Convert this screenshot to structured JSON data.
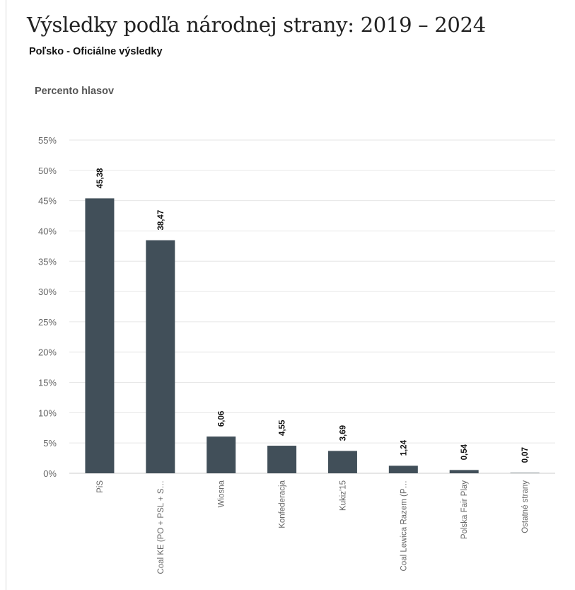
{
  "title": "Výsledky podľa národnej strany: 2019 – 2024",
  "subtitle": "Poľsko - Oficiálne výsledky",
  "chart_data": {
    "type": "bar",
    "ylabel": "Percento hlasov",
    "xlabel": "",
    "ylim": [
      0,
      55
    ],
    "yticks": [
      0,
      5,
      10,
      15,
      20,
      25,
      30,
      35,
      40,
      45,
      50,
      55
    ],
    "ytick_labels": [
      "0%",
      "5%",
      "10%",
      "15%",
      "20%",
      "25%",
      "30%",
      "35%",
      "40%",
      "45%",
      "50%",
      "55%"
    ],
    "grid": true,
    "categories": [
      "PiS",
      "Coal KE (PO + PSL + S…",
      "Wiosna",
      "Konfederacja",
      "Kukiz'15",
      "Coal Lewica Razem (P…",
      "Polska Fair Play",
      "Ostatné strany"
    ],
    "values": [
      45.38,
      38.47,
      6.06,
      4.55,
      3.69,
      1.24,
      0.54,
      0.07
    ],
    "value_labels": [
      "45,38",
      "38,47",
      "6,06",
      "4,55",
      "3,69",
      "1,24",
      "0,54",
      "0,07"
    ],
    "colors": {
      "bar": "#414f59",
      "grid": "#e6e6e6",
      "tick_text": "#666666",
      "value_text": "#111111"
    }
  }
}
